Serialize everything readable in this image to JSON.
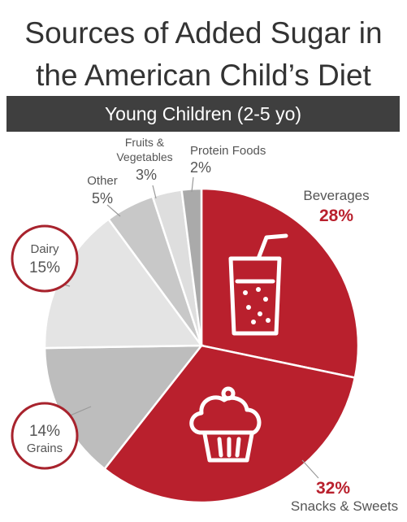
{
  "title": {
    "line1": "Sources of Added Sugar in",
    "line2": "the American Child’s Diet"
  },
  "subtitle": "Young Children (2-5 yo)",
  "colors": {
    "red": "#b9202d",
    "grays": [
      "#dcdcdc",
      "#bdbdbd",
      "#d0d0d0",
      "#e1e1e1",
      "#e8e8e8",
      "#b1b1b1"
    ],
    "banner": "#3f3f3f"
  },
  "chart_data": {
    "type": "pie",
    "title": "Young Children (2-5 yo)",
    "slices": [
      {
        "label": "Beverages",
        "value": 28,
        "display": "28%",
        "color": "#b9202d",
        "icon": "drink-cup-icon"
      },
      {
        "label": "Snacks & Sweets",
        "value": 32,
        "display": "32%",
        "color": "#b9202d",
        "icon": "cupcake-icon"
      },
      {
        "label": "Grains",
        "value": 14,
        "display": "14%",
        "color": "#bdbdbd",
        "highlighted": true
      },
      {
        "label": "Dairy",
        "value": 15,
        "display": "15%",
        "color": "#e4e4e4",
        "highlighted": true
      },
      {
        "label": "Other",
        "value": 5,
        "display": "5%",
        "color": "#c8c8c8"
      },
      {
        "label": "Fruits & Vegetables",
        "value": 3,
        "display": "3%",
        "color": "#dedede"
      },
      {
        "label": "Protein Foods",
        "value": 2,
        "display": "2%",
        "color": "#aaaaaa"
      }
    ],
    "legend": "none"
  }
}
